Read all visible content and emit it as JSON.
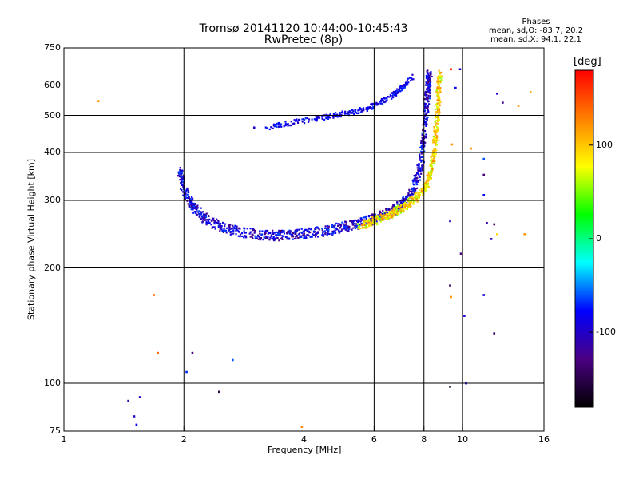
{
  "chart_data": {
    "type": "scatter",
    "title": "Tromsø 20141120 10:44:00-10:45:43",
    "subtitle": "RwPretec (8p)",
    "xlabel": "Frequency [MHz]",
    "ylabel": "Stationary phase Virtual Height [km]",
    "x_scale": "log",
    "y_scale": "log",
    "xlim": [
      1,
      16
    ],
    "ylim": [
      75,
      750
    ],
    "xticks": [
      1,
      2,
      4,
      6,
      8,
      10,
      16
    ],
    "yticks": [
      75,
      100,
      200,
      300,
      400,
      500,
      600,
      750
    ],
    "grid": true,
    "phases": {
      "heading": "Phases",
      "line_o": "mean, sd,O:  -83.7, 20.2",
      "line_x": "mean, sd,X:  94.1, 22.1"
    },
    "colorbar": {
      "label": "[deg]",
      "range": [
        -180,
        180
      ],
      "ticks": [
        100,
        0,
        -100
      ],
      "colors": [
        "#000000",
        "#4b0082",
        "#0000ff",
        "#00ffff",
        "#00ff00",
        "#ffff00",
        "#ff8000",
        "#ff0000"
      ]
    },
    "o_trace": [
      [
        1.95,
        360
      ],
      [
        2.0,
        320
      ],
      [
        2.1,
        290
      ],
      [
        2.25,
        270
      ],
      [
        2.5,
        255
      ],
      [
        2.8,
        248
      ],
      [
        3.2,
        243
      ],
      [
        3.6,
        243
      ],
      [
        4.0,
        246
      ],
      [
        4.5,
        250
      ],
      [
        5.0,
        255
      ],
      [
        5.5,
        262
      ],
      [
        6.0,
        268
      ],
      [
        6.5,
        278
      ],
      [
        7.0,
        292
      ],
      [
        7.5,
        320
      ],
      [
        7.8,
        360
      ],
      [
        8.0,
        430
      ],
      [
        8.1,
        520
      ],
      [
        8.2,
        600
      ],
      [
        8.25,
        640
      ]
    ],
    "o_trace_phase": -95,
    "upper_branch": [
      [
        3.2,
        465
      ],
      [
        3.8,
        480
      ],
      [
        4.5,
        495
      ],
      [
        5.0,
        505
      ],
      [
        5.5,
        515
      ],
      [
        6.0,
        530
      ],
      [
        6.5,
        555
      ],
      [
        7.0,
        585
      ],
      [
        7.5,
        630
      ]
    ],
    "upper_branch_phase": -85,
    "x_trace": [
      [
        5.5,
        258
      ],
      [
        6.0,
        265
      ],
      [
        6.5,
        275
      ],
      [
        7.0,
        285
      ],
      [
        7.5,
        300
      ],
      [
        8.0,
        320
      ],
      [
        8.3,
        350
      ],
      [
        8.5,
        400
      ],
      [
        8.6,
        480
      ],
      [
        8.7,
        560
      ],
      [
        8.75,
        640
      ]
    ],
    "x_trace_phase": 90,
    "scatter_points": [
      {
        "x": 1.22,
        "y": 545,
        "phase": 120
      },
      {
        "x": 1.68,
        "y": 170,
        "phase": 140
      },
      {
        "x": 1.72,
        "y": 120,
        "phase": 140
      },
      {
        "x": 1.45,
        "y": 90,
        "phase": -110
      },
      {
        "x": 1.5,
        "y": 82,
        "phase": -100
      },
      {
        "x": 1.52,
        "y": 78,
        "phase": -80
      },
      {
        "x": 1.55,
        "y": 92,
        "phase": -100
      },
      {
        "x": 2.1,
        "y": 120,
        "phase": -130
      },
      {
        "x": 2.03,
        "y": 107,
        "phase": -70
      },
      {
        "x": 2.65,
        "y": 115,
        "phase": -60
      },
      {
        "x": 2.45,
        "y": 95,
        "phase": -150
      },
      {
        "x": 3.95,
        "y": 77,
        "phase": 130
      },
      {
        "x": 3.0,
        "y": 465,
        "phase": -100
      },
      {
        "x": 9.35,
        "y": 660,
        "phase": 160
      },
      {
        "x": 9.85,
        "y": 660,
        "phase": -100
      },
      {
        "x": 9.6,
        "y": 590,
        "phase": -80
      },
      {
        "x": 9.4,
        "y": 420,
        "phase": 120
      },
      {
        "x": 9.3,
        "y": 265,
        "phase": -110
      },
      {
        "x": 9.3,
        "y": 180,
        "phase": -140
      },
      {
        "x": 9.35,
        "y": 168,
        "phase": 120
      },
      {
        "x": 9.9,
        "y": 218,
        "phase": -130
      },
      {
        "x": 10.1,
        "y": 150,
        "phase": -90
      },
      {
        "x": 10.2,
        "y": 100,
        "phase": -80
      },
      {
        "x": 9.3,
        "y": 98,
        "phase": -160
      },
      {
        "x": 12.2,
        "y": 570,
        "phase": -90
      },
      {
        "x": 12.6,
        "y": 540,
        "phase": -120
      },
      {
        "x": 13.8,
        "y": 530,
        "phase": 120
      },
      {
        "x": 11.3,
        "y": 385,
        "phase": -60
      },
      {
        "x": 11.3,
        "y": 350,
        "phase": -130
      },
      {
        "x": 11.3,
        "y": 310,
        "phase": -80
      },
      {
        "x": 11.5,
        "y": 262,
        "phase": -110
      },
      {
        "x": 12.0,
        "y": 260,
        "phase": -130
      },
      {
        "x": 12.2,
        "y": 245,
        "phase": 90
      },
      {
        "x": 11.8,
        "y": 238,
        "phase": -100
      },
      {
        "x": 11.3,
        "y": 170,
        "phase": -90
      },
      {
        "x": 12.0,
        "y": 135,
        "phase": -140
      },
      {
        "x": 14.3,
        "y": 245,
        "phase": 120
      },
      {
        "x": 14.8,
        "y": 575,
        "phase": 110
      },
      {
        "x": 10.5,
        "y": 410,
        "phase": 120
      },
      {
        "x": 3.45,
        "y": 245,
        "phase": -60
      }
    ]
  }
}
